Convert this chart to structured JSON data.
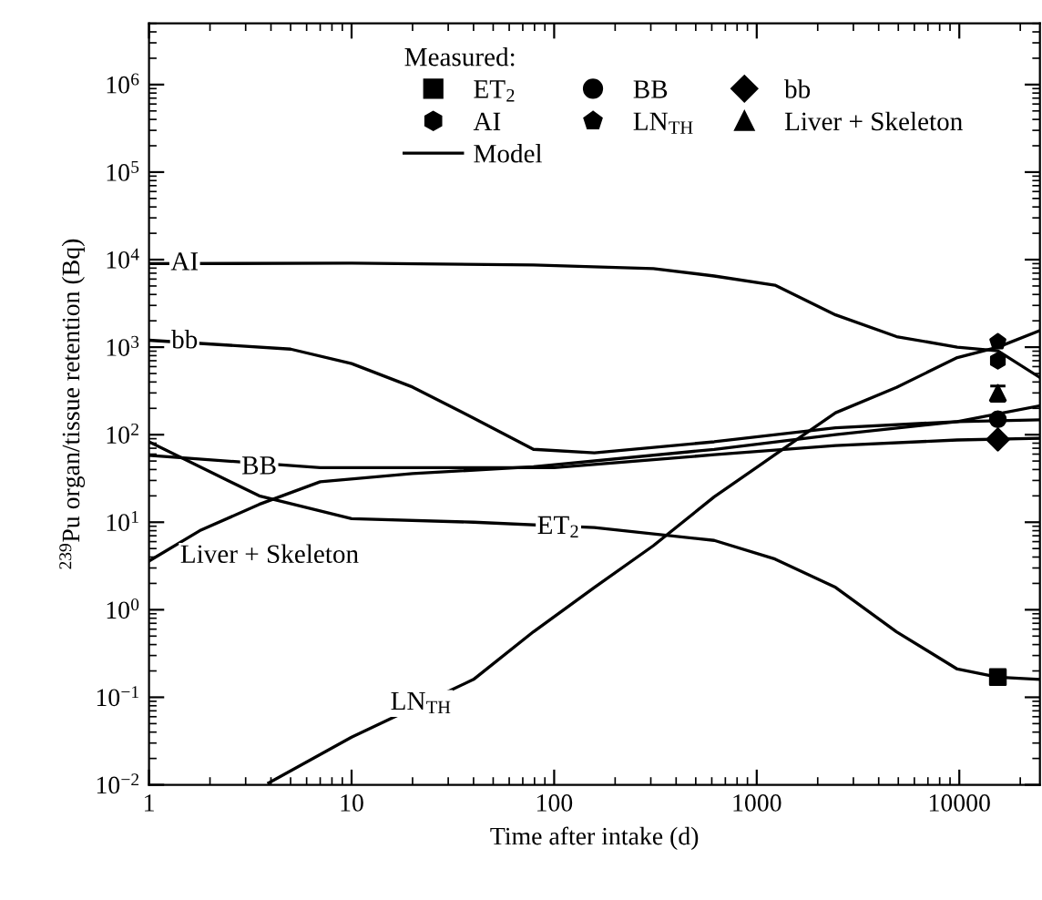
{
  "chart_data": {
    "type": "line",
    "xlabel": "Time after intake (d)",
    "ylabel": "$^{239}$Pu organ/tissue retention (Bq)",
    "log": "xy",
    "xlim": [
      1,
      25000
    ],
    "ylim": [
      0.01,
      5000000
    ],
    "xticks": [
      1,
      10,
      100,
      1000,
      10000
    ],
    "yticks": [
      {
        "value": 0.01,
        "label": "10$^{−2}$"
      },
      {
        "value": 0.1,
        "label": "10$^{−1}$"
      },
      {
        "value": 1,
        "label": "10$^{0}$"
      },
      {
        "value": 10,
        "label": "10$^{1}$"
      },
      {
        "value": 100,
        "label": "10$^{2}$"
      },
      {
        "value": 1000,
        "label": "10$^{3}$"
      },
      {
        "value": 10000,
        "label": "10$^{4}$"
      },
      {
        "value": 100000,
        "label": "10$^{5}$"
      },
      {
        "value": 1000000,
        "label": "10$^{6}$"
      }
    ],
    "grid": false,
    "legend": "top",
    "legend_title": "Measured:",
    "series": [
      {
        "name": "Model",
        "color": "#000000",
        "marker": "none",
        "line_style": "solid",
        "x": [
          1,
          10,
          79,
          309,
          617,
          1230,
          2450,
          4900,
          9770,
          15500,
          25000
        ],
        "values": [
          9000,
          9100,
          8700,
          7900,
          6500,
          5100,
          2340,
          1320,
          1000,
          910,
          450
        ]
      },
      {
        "color": "#000000",
        "marker": "none",
        "line_style": "solid",
        "x": [
          1,
          5,
          10,
          20,
          40,
          79,
          158,
          617,
          2450,
          9770,
          25000
        ],
        "values": [
          1200,
          950,
          650,
          350,
          155,
          68,
          62,
          83,
          120,
          141,
          148
        ]
      },
      {
        "color": "#000000",
        "marker": "none",
        "line_style": "solid",
        "x": [
          1,
          7,
          20,
          100,
          617,
          2450,
          9770,
          25000
        ],
        "values": [
          58,
          42,
          42,
          42,
          59,
          75,
          87,
          91
        ]
      },
      {
        "color": "#000000",
        "marker": "none",
        "line_style": "solid",
        "x": [
          1,
          1.78,
          3.5,
          7,
          20,
          79,
          617,
          2450,
          9770,
          25000
        ],
        "values": [
          3.6,
          8,
          16,
          29,
          36,
          43,
          68,
          100,
          141,
          214
        ]
      },
      {
        "color": "#000000",
        "marker": "none",
        "line_style": "solid",
        "x": [
          1,
          3.5,
          10,
          40,
          158,
          617,
          1230,
          2450,
          4900,
          9770,
          15500,
          25000
        ],
        "values": [
          83,
          20,
          11,
          10,
          8.7,
          6.2,
          3.8,
          1.8,
          0.56,
          0.21,
          0.17,
          0.16
        ]
      },
      {
        "color": "#000000",
        "marker": "none",
        "line_style": "solid",
        "x": [
          3.9,
          10,
          40,
          79,
          158,
          309,
          617,
          1230,
          2450,
          4900,
          9770,
          15500,
          25000
        ],
        "values": [
          0.0105,
          0.035,
          0.16,
          0.56,
          1.8,
          5.4,
          19.5,
          59,
          178,
          347,
          760,
          1000,
          1550
        ]
      },
      {
        "type": "scatter",
        "name": "ET$_{2}$",
        "color": "#000000",
        "marker": "square",
        "x": [
          15500
        ],
        "values": [
          0.17
        ]
      },
      {
        "type": "scatter",
        "name": "BB",
        "color": "#000000",
        "marker": "circle",
        "x": [
          15500
        ],
        "values": [
          150
        ]
      },
      {
        "type": "scatter",
        "name": "bb",
        "color": "#000000",
        "marker": "diamond",
        "x": [
          15500
        ],
        "values": [
          88
        ]
      },
      {
        "type": "scatter",
        "name": "AI",
        "color": "#000000",
        "x": [
          15500
        ],
        "values": [
          700
        ]
      },
      {
        "type": "scatter",
        "name": "LN$_{TH}$",
        "color": "#000000",
        "x": [
          15500
        ],
        "values": [
          1150
        ]
      },
      {
        "type": "scatter",
        "name": "Liver + Skeleton",
        "color": "#000000",
        "marker": "triangle",
        "x": [
          15500
        ],
        "values": [
          300
        ],
        "errors": [
          60
        ]
      }
    ],
    "annotations": [
      {
        "text": "AI",
        "x": 1.5,
        "y": 9000
      },
      {
        "text": "bb",
        "x": 1.5,
        "y": 1150
      },
      {
        "text": "BB",
        "x": 3.5,
        "y": 42
      },
      {
        "text": "ET$_{2}$",
        "x": 105,
        "y": 8.7
      },
      "Liver + Skeleton",
      {
        "text": "LN$_{TH}$",
        "x": 22,
        "y": 0.085
      }
    ]
  }
}
